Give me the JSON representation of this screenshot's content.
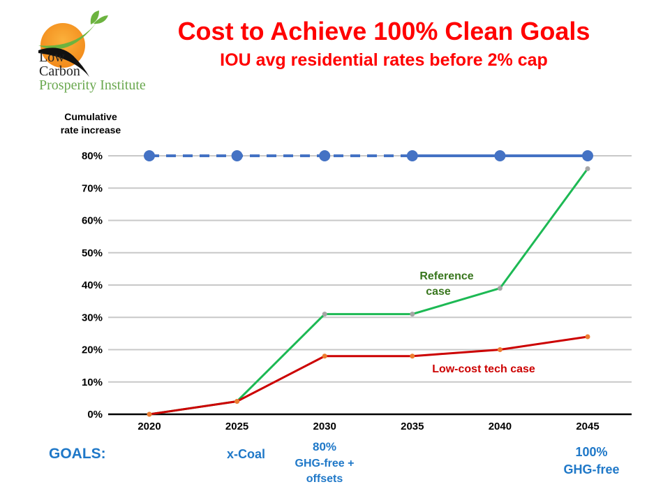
{
  "header": {
    "title": "Cost to Achieve 100% Clean Goals",
    "subtitle": "IOU avg residential rates before 2% cap"
  },
  "logo": {
    "line1": "Low",
    "line2": "Carbon",
    "line3": "Prosperity Institute"
  },
  "chart_data": {
    "type": "line",
    "ylabel": "Cumulative rate increase",
    "x": [
      2020,
      2025,
      2030,
      2035,
      2040,
      2045
    ],
    "xticks": [
      "2020",
      "2025",
      "2030",
      "2035",
      "2040",
      "2045"
    ],
    "yticks": [
      "0%",
      "10%",
      "20%",
      "30%",
      "40%",
      "50%",
      "60%",
      "70%",
      "80%"
    ],
    "ylim": [
      0,
      80
    ],
    "grid": true,
    "series": [
      {
        "key": "cap",
        "values": [
          80,
          80,
          80,
          80,
          80,
          80
        ],
        "color": "#4472c4",
        "style": "dashed 2020-2035, solid 2035-2045"
      },
      {
        "name": "Reference case",
        "values": [
          0,
          4,
          31,
          31,
          39,
          76
        ],
        "color": "#1db954",
        "label_color": "#38761d"
      },
      {
        "name": "Low-cost tech case",
        "values": [
          0,
          4,
          18,
          18,
          20,
          24
        ],
        "color": "#cc0000",
        "label_color": "#cc0000"
      }
    ],
    "annotations": {
      "reference": [
        "Reference",
        "case"
      ],
      "lowcost": "Low-cost tech case"
    }
  },
  "goals": {
    "label": "GOALS:",
    "g2025": "x-Coal",
    "g2030_a": "80%",
    "g2030_b": "GHG-free +",
    "g2030_c": "offsets",
    "g2045_a": "100%",
    "g2045_b": "GHG-free"
  }
}
